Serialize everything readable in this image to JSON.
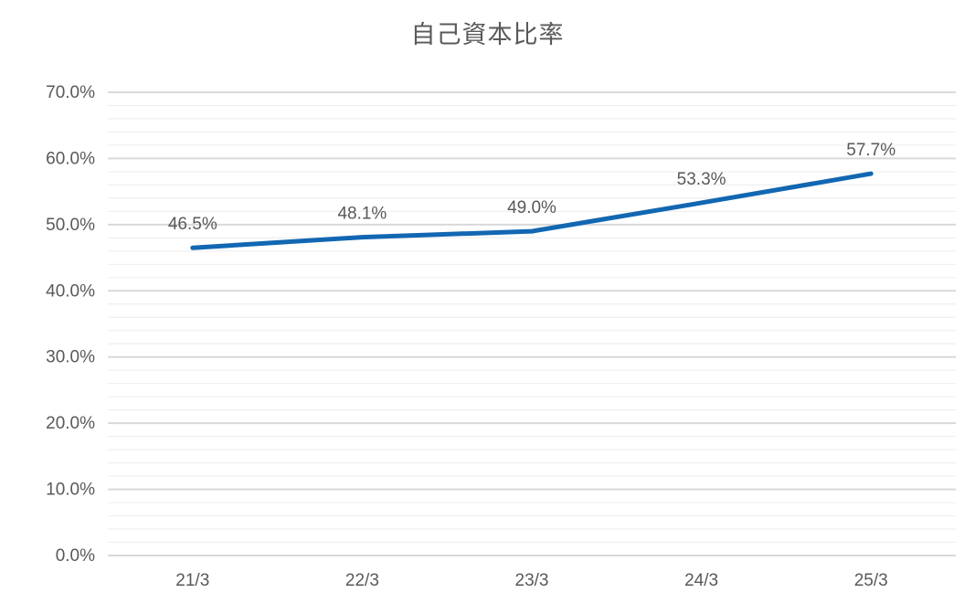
{
  "title": "自己資本比率",
  "chart_data": {
    "type": "line",
    "title": "自己資本比率",
    "categories": [
      "21/3",
      "22/3",
      "23/3",
      "24/3",
      "25/3"
    ],
    "values": [
      46.5,
      48.1,
      49.0,
      53.3,
      57.7
    ],
    "data_labels": [
      "46.5%",
      "48.1%",
      "49.0%",
      "53.3%",
      "57.7%"
    ],
    "y_ticks": [
      {
        "v": 0,
        "label": "0.0%"
      },
      {
        "v": 10,
        "label": "10.0%"
      },
      {
        "v": 20,
        "label": "20.0%"
      },
      {
        "v": 30,
        "label": "30.0%"
      },
      {
        "v": 40,
        "label": "40.0%"
      },
      {
        "v": 50,
        "label": "50.0%"
      },
      {
        "v": 60,
        "label": "60.0%"
      },
      {
        "v": 70,
        "label": "70.0%"
      }
    ],
    "ylim": [
      0,
      70
    ],
    "y_major_step": 10,
    "y_minor_step": 2,
    "grid": true,
    "legend": "none",
    "colors": {
      "line": "#1267B2",
      "text": "#595959",
      "grid_major": "#D9D9D9",
      "grid_minor": "#EFEFEF"
    }
  }
}
